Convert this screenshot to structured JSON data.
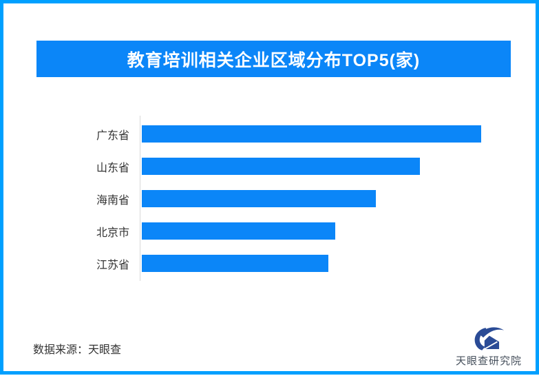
{
  "frame": {
    "border_color": "#00A0FF",
    "background": "#FFFFFF"
  },
  "header": {
    "title": "教育培训相关企业区域分布TOP5(家)",
    "background": "#0B86F8",
    "text_color": "#FFFFFF"
  },
  "chart_data": {
    "type": "bar",
    "orientation": "horizontal",
    "title": "教育培训相关企业区域分布TOP5(家)",
    "categories": [
      "广东省",
      "山东省",
      "海南省",
      "北京市",
      "江苏省"
    ],
    "values_pct_of_max": [
      100,
      82,
      69,
      57,
      55
    ],
    "value_labels_shown": false,
    "xlabel": "",
    "ylabel": "",
    "grid": false,
    "legend": false,
    "bar_color": "#0B86F8",
    "axis_line_color": "#D8D8D8",
    "label_color": "#333333"
  },
  "footer": {
    "source_text": "数据来源：天眼查"
  },
  "logo": {
    "text": "天眼查研究院",
    "icon": "tianyancha-eye-icon",
    "icon_color": "#2A4B96",
    "text_color": "#454F5B"
  }
}
